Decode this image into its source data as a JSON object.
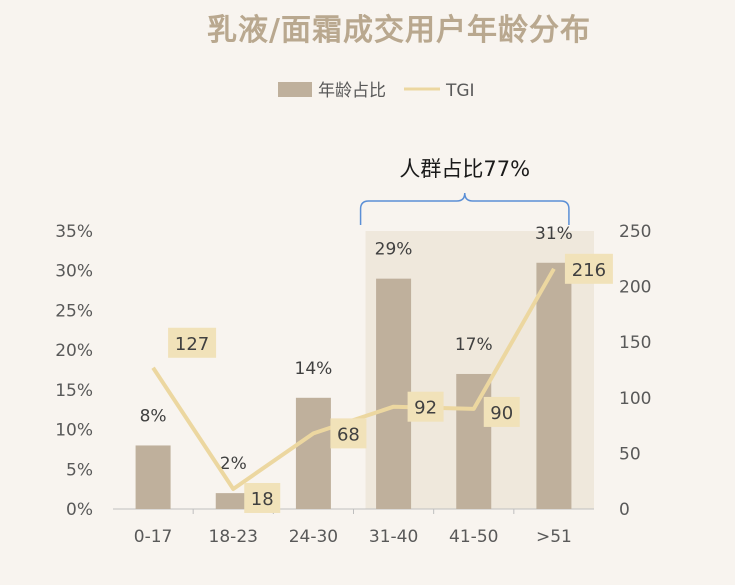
{
  "colors": {
    "bar": "#bfb09c",
    "line": "#ecd7a0",
    "label_box": "#f1e2b9",
    "highlight": "#efe8dc",
    "bracket": "#5b8fd6",
    "title": "#b9a88f"
  },
  "chart_data": {
    "type": "bar",
    "title": "乳液/面霜成交用户年龄分布",
    "categories": [
      "0-17",
      "18-23",
      "24-30",
      "31-40",
      "41-50",
      ">51"
    ],
    "series": [
      {
        "name": "年龄占比",
        "type": "bar",
        "axis": "left",
        "values": [
          8,
          2,
          14,
          29,
          17,
          31
        ],
        "labels": [
          "8%",
          "2%",
          "14%",
          "29%",
          "17%",
          "31%"
        ]
      },
      {
        "name": "TGI",
        "type": "line",
        "axis": "right",
        "values": [
          127,
          18,
          68,
          92,
          90,
          216
        ],
        "labels": [
          "127",
          "18",
          "68",
          "92",
          "90",
          "216"
        ]
      }
    ],
    "y_left": {
      "range": [
        0,
        35
      ],
      "ticks": [
        0,
        5,
        10,
        15,
        20,
        25,
        30,
        35
      ],
      "tick_labels": [
        "0%",
        "5%",
        "10%",
        "15%",
        "20%",
        "25%",
        "30%",
        "35%"
      ]
    },
    "y_right": {
      "range": [
        0,
        250
      ],
      "ticks": [
        0,
        50,
        100,
        150,
        200,
        250
      ],
      "tick_labels": [
        "0",
        "50",
        "100",
        "150",
        "200",
        "250"
      ]
    },
    "highlight_categories": [
      "31-40",
      "41-50",
      ">51"
    ],
    "annotation": "人群占比77%",
    "legend_position": "top-center",
    "grid": false
  }
}
